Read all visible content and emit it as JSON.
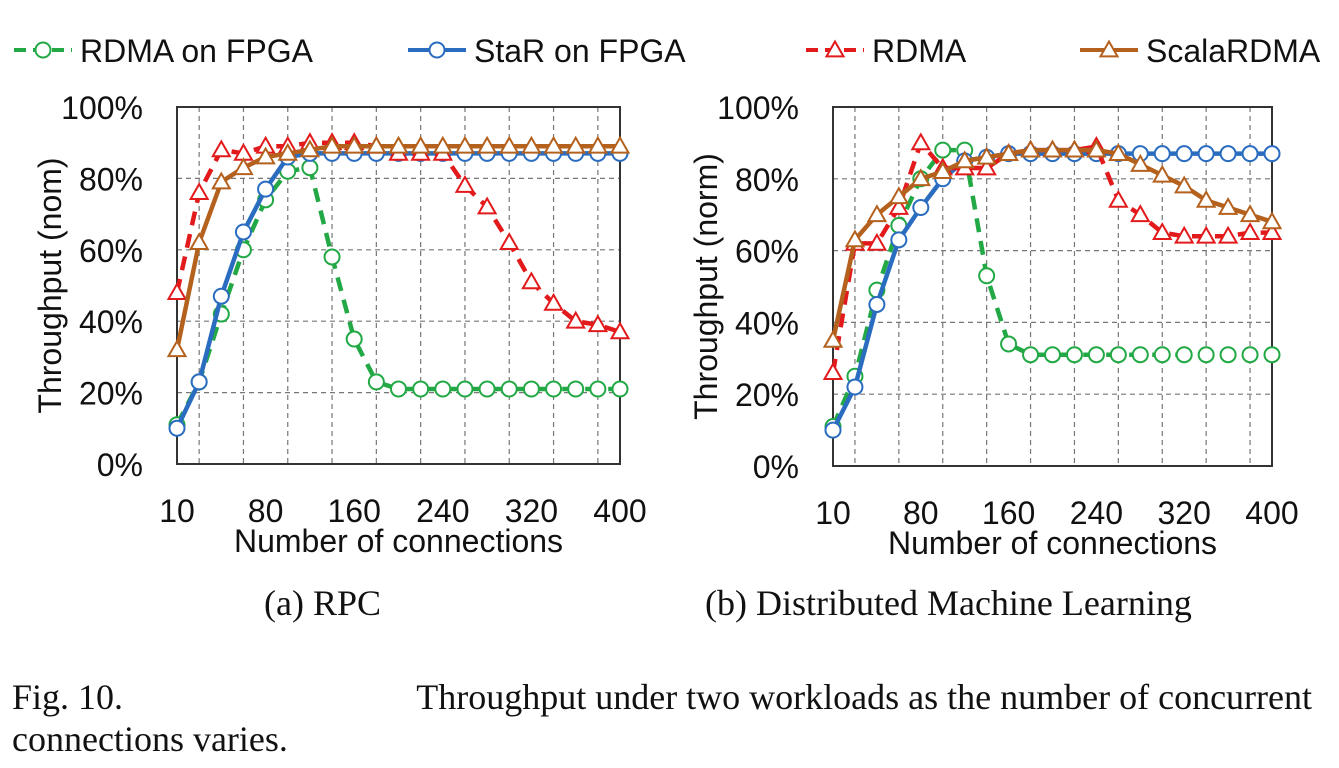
{
  "legend": [
    {
      "name": "RDMA on FPGA",
      "color": "#22a844",
      "marker": "circle",
      "dash": "dashed"
    },
    {
      "name": "StaR on FPGA",
      "color": "#2a6cbf",
      "marker": "circle",
      "dash": "solid"
    },
    {
      "name": "RDMA",
      "color": "#e31a1c",
      "marker": "triangle",
      "dash": "dashed"
    },
    {
      "name": "ScalaRDMA",
      "color": "#b5611e",
      "marker": "triangle",
      "dash": "solid"
    }
  ],
  "captions": {
    "a": "(a)  RPC",
    "b": "(b)  Distributed Machine Learning",
    "figure_label": "Fig. 10.",
    "figure_text_line1": "Throughput under two workloads as the number of concurrent",
    "figure_text_line2": "connections varies."
  },
  "chart_data": [
    {
      "type": "line",
      "panel": "a",
      "xlabel": "Number of connections",
      "ylabel": "Throughput (nom)",
      "x_tick_labels": [
        "10",
        "80",
        "160",
        "240",
        "320",
        "400"
      ],
      "y_tick_labels": [
        "0%",
        "20%",
        "40%",
        "60%",
        "80%",
        "100%"
      ],
      "ylim": [
        0,
        100
      ],
      "xlim": [
        10,
        400
      ],
      "grid": true,
      "x": [
        10,
        30,
        50,
        70,
        90,
        110,
        130,
        150,
        170,
        190,
        210,
        230,
        250,
        270,
        290,
        310,
        330,
        350,
        370,
        390,
        410
      ],
      "series": [
        {
          "name": "RDMA on FPGA",
          "values": [
            11,
            23,
            42,
            60,
            74,
            82,
            83,
            58,
            35,
            23,
            21,
            21,
            21,
            21,
            21,
            21,
            21,
            21,
            21,
            21,
            21
          ]
        },
        {
          "name": "StaR on FPGA",
          "values": [
            10,
            23,
            47,
            65,
            77,
            86,
            87,
            87,
            87,
            87,
            87,
            87,
            87,
            87,
            87,
            87,
            87,
            87,
            87,
            87,
            87
          ]
        },
        {
          "name": "RDMA",
          "values": [
            48,
            76,
            88,
            87,
            89,
            89,
            90,
            90,
            90,
            89,
            87,
            87,
            87,
            78,
            72,
            62,
            51,
            45,
            40,
            39,
            37
          ]
        },
        {
          "name": "ScalaRDMA",
          "values": [
            32,
            62,
            79,
            83,
            86,
            87,
            88,
            89,
            89,
            89,
            89,
            89,
            89,
            89,
            89,
            89,
            89,
            89,
            89,
            89,
            89
          ]
        }
      ]
    },
    {
      "type": "line",
      "panel": "b",
      "xlabel": "Number of connections",
      "ylabel": "Throughput (norm)",
      "x_tick_labels": [
        "10",
        "80",
        "160",
        "240",
        "320",
        "400"
      ],
      "y_tick_labels": [
        "0%",
        "20%",
        "40%",
        "60%",
        "80%",
        "100%"
      ],
      "ylim": [
        0,
        100
      ],
      "xlim": [
        10,
        400
      ],
      "grid": true,
      "x": [
        10,
        30,
        50,
        70,
        90,
        110,
        130,
        150,
        170,
        190,
        210,
        230,
        250,
        270,
        290,
        310,
        330,
        350,
        370,
        390,
        410
      ],
      "series": [
        {
          "name": "RDMA on FPGA",
          "values": [
            11,
            25,
            49,
            67,
            80,
            88,
            88,
            53,
            34,
            31,
            31,
            31,
            31,
            31,
            31,
            31,
            31,
            31,
            31,
            31,
            31
          ]
        },
        {
          "name": "StaR on FPGA",
          "values": [
            10,
            22,
            45,
            63,
            72,
            80,
            85,
            86,
            87,
            87,
            87,
            87,
            87,
            87,
            87,
            87,
            87,
            87,
            87,
            87,
            87
          ]
        },
        {
          "name": "RDMA",
          "values": [
            26,
            62,
            62,
            72,
            90,
            83,
            83,
            83,
            87,
            88,
            88,
            88,
            89,
            74,
            70,
            65,
            64,
            64,
            64,
            65,
            65
          ]
        },
        {
          "name": "ScalaRDMA",
          "values": [
            35,
            63,
            70,
            75,
            80,
            82,
            85,
            86,
            87,
            88,
            88,
            88,
            88,
            87,
            84,
            81,
            78,
            74,
            72,
            70,
            68
          ]
        }
      ]
    }
  ]
}
